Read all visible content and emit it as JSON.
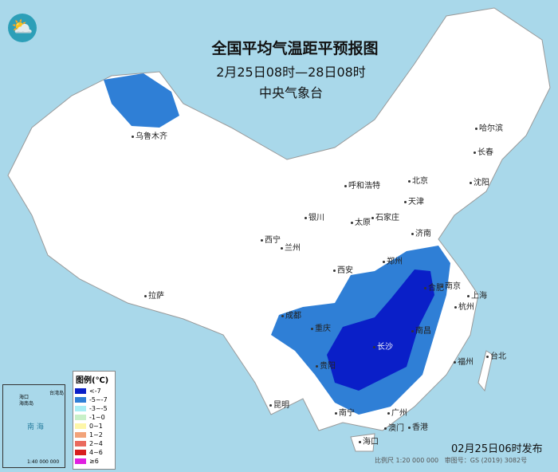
{
  "title": "全国平均气温距平预报图",
  "period": "2月25日08时—28日08时",
  "issuer": "中央气象台",
  "logo_icon": "cma-logo-icon",
  "issued": "02月25日06时发布",
  "scale": "比例尺 1:20 000 000",
  "review_no": "审图号：GS (2019) 3082号",
  "legend": {
    "title": "图例(℃)",
    "items": [
      {
        "label": "<-7",
        "color": "#0a1fc8"
      },
      {
        "label": "-5~-7",
        "color": "#2f7fd6"
      },
      {
        "label": "-3~-5",
        "color": "#a8eef5"
      },
      {
        "label": "-1~0",
        "color": "#c8f0c8"
      },
      {
        "label": "0~1",
        "color": "#fdf6a8"
      },
      {
        "label": "1~2",
        "color": "#f2a37a"
      },
      {
        "label": "2~4",
        "color": "#ea6a5e"
      },
      {
        "label": "4~6",
        "color": "#d81e1e"
      },
      {
        "label": "≥6",
        "color": "#e020e0"
      }
    ]
  },
  "inset": {
    "sea": "南 海",
    "haikou": "海口",
    "hainan": "海南岛",
    "taiwan": "台湾岛",
    "scale": "1:40 000 000"
  },
  "cities": [
    "乌鲁木齐",
    "哈尔滨",
    "长春",
    "沈阳",
    "北京",
    "天津",
    "呼和浩特",
    "石家庄",
    "太原",
    "济南",
    "银川",
    "西宁",
    "兰州",
    "郑州",
    "西安",
    "合肥",
    "南京",
    "上海",
    "杭州",
    "拉萨",
    "成都",
    "重庆",
    "长沙",
    "南昌",
    "贵阳",
    "昆明",
    "福州",
    "台北",
    "广州",
    "南宁",
    "澳门",
    "香港",
    "海口"
  ]
}
